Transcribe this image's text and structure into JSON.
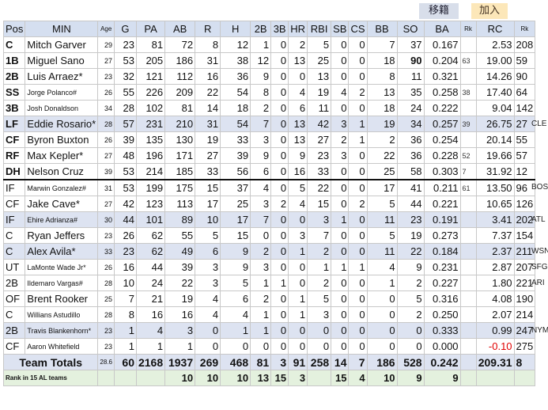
{
  "buttons": {
    "move": "移籍",
    "add": "加入"
  },
  "headers": [
    "Pos",
    "MIN",
    "Age",
    "G",
    "PA",
    "AB",
    "R",
    "H",
    "2B",
    "3B",
    "HR",
    "RBI",
    "SB",
    "CS",
    "BB",
    "SO",
    "BA",
    "Rk",
    "RC",
    "Rk"
  ],
  "players": [
    {
      "pos": "C",
      "name": "Mitch Garver",
      "age": "29",
      "g": "23",
      "pa": "81",
      "ab": "72",
      "r": "8",
      "h": "12",
      "d": "1",
      "t": "0",
      "hr": "2",
      "rbi": "5",
      "sb": "0",
      "cs": "0",
      "bb": "7",
      "so": "37",
      "ba": "0.167",
      "bark": "",
      "rc": "2.53",
      "rcrk": "208",
      "team": "",
      "hl": false
    },
    {
      "pos": "1B",
      "name": "Miguel Sano",
      "age": "27",
      "g": "53",
      "pa": "205",
      "ab": "186",
      "r": "31",
      "h": "38",
      "d": "12",
      "t": "0",
      "hr": "13",
      "rbi": "25",
      "sb": "0",
      "cs": "0",
      "bb": "18",
      "so": "90",
      "ba": "0.204",
      "bark": "63",
      "rc": "19.00",
      "rcrk": "59",
      "team": "",
      "hl": false,
      "so_bold": true
    },
    {
      "pos": "2B",
      "name": "Luis Arraez*",
      "age": "23",
      "g": "32",
      "pa": "121",
      "ab": "112",
      "r": "16",
      "h": "36",
      "d": "9",
      "t": "0",
      "hr": "0",
      "rbi": "13",
      "sb": "0",
      "cs": "0",
      "bb": "8",
      "so": "11",
      "ba": "0.321",
      "bark": "",
      "rc": "14.26",
      "rcrk": "90",
      "team": "",
      "hl": false
    },
    {
      "pos": "SS",
      "name": "Jorge Polanco#",
      "age": "26",
      "g": "55",
      "pa": "226",
      "ab": "209",
      "r": "22",
      "h": "54",
      "d": "8",
      "t": "0",
      "hr": "4",
      "rbi": "19",
      "sb": "4",
      "cs": "2",
      "bb": "13",
      "so": "35",
      "ba": "0.258",
      "bark": "38",
      "rc": "17.40",
      "rcrk": "64",
      "team": "",
      "hl": false,
      "name_small": true
    },
    {
      "pos": "3B",
      "name": "Josh Donaldson",
      "age": "34",
      "g": "28",
      "pa": "102",
      "ab": "81",
      "r": "14",
      "h": "18",
      "d": "2",
      "t": "0",
      "hr": "6",
      "rbi": "11",
      "sb": "0",
      "cs": "0",
      "bb": "18",
      "so": "24",
      "ba": "0.222",
      "bark": "",
      "rc": "9.04",
      "rcrk": "142",
      "team": "",
      "hl": false,
      "name_small": true
    },
    {
      "pos": "LF",
      "name": "Eddie Rosario*",
      "age": "28",
      "g": "57",
      "pa": "231",
      "ab": "210",
      "r": "31",
      "h": "54",
      "d": "7",
      "t": "0",
      "hr": "13",
      "rbi": "42",
      "sb": "3",
      "cs": "1",
      "bb": "19",
      "so": "34",
      "ba": "0.257",
      "bark": "39",
      "rc": "26.75",
      "rcrk": "27",
      "team": "CLE",
      "hl": true
    },
    {
      "pos": "CF",
      "name": "Byron Buxton",
      "age": "26",
      "g": "39",
      "pa": "135",
      "ab": "130",
      "r": "19",
      "h": "33",
      "d": "3",
      "t": "0",
      "hr": "13",
      "rbi": "27",
      "sb": "2",
      "cs": "1",
      "bb": "2",
      "so": "36",
      "ba": "0.254",
      "bark": "",
      "rc": "20.14",
      "rcrk": "55",
      "team": "",
      "hl": false
    },
    {
      "pos": "RF",
      "name": "Max Kepler*",
      "age": "27",
      "g": "48",
      "pa": "196",
      "ab": "171",
      "r": "27",
      "h": "39",
      "d": "9",
      "t": "0",
      "hr": "9",
      "rbi": "23",
      "sb": "3",
      "cs": "0",
      "bb": "22",
      "so": "36",
      "ba": "0.228",
      "bark": "52",
      "rc": "19.66",
      "rcrk": "57",
      "team": "",
      "hl": false
    },
    {
      "pos": "DH",
      "name": "Nelson Cruz",
      "age": "39",
      "g": "53",
      "pa": "214",
      "ab": "185",
      "r": "33",
      "h": "56",
      "d": "6",
      "t": "0",
      "hr": "16",
      "rbi": "33",
      "sb": "0",
      "cs": "0",
      "bb": "25",
      "so": "58",
      "ba": "0.303",
      "bark": "7",
      "rc": "31.92",
      "rcrk": "12",
      "team": "",
      "hl": false
    },
    {
      "pos": "IF",
      "name": "Marwin Gonzalez#",
      "age": "31",
      "g": "53",
      "pa": "199",
      "ab": "175",
      "r": "15",
      "h": "37",
      "d": "4",
      "t": "0",
      "hr": "5",
      "rbi": "22",
      "sb": "0",
      "cs": "0",
      "bb": "17",
      "so": "41",
      "ba": "0.211",
      "bark": "61",
      "rc": "13.50",
      "rcrk": "96",
      "team": "BOS",
      "hl": false,
      "name_small": true,
      "start": true,
      "plainpos": true
    },
    {
      "pos": "CF",
      "name": "Jake Cave*",
      "age": "27",
      "g": "42",
      "pa": "123",
      "ab": "113",
      "r": "17",
      "h": "25",
      "d": "3",
      "t": "2",
      "hr": "4",
      "rbi": "15",
      "sb": "0",
      "cs": "2",
      "bb": "5",
      "so": "44",
      "ba": "0.221",
      "bark": "",
      "rc": "10.65",
      "rcrk": "126",
      "team": "",
      "hl": false,
      "plainpos": true
    },
    {
      "pos": "IF",
      "name": "Ehire Adrianza#",
      "age": "30",
      "g": "44",
      "pa": "101",
      "ab": "89",
      "r": "10",
      "h": "17",
      "d": "7",
      "t": "0",
      "hr": "0",
      "rbi": "3",
      "sb": "1",
      "cs": "0",
      "bb": "11",
      "so": "23",
      "ba": "0.191",
      "bark": "",
      "rc": "3.41",
      "rcrk": "202",
      "team": "ATL",
      "hl": true,
      "name_small": true,
      "plainpos": true
    },
    {
      "pos": "C",
      "name": "Ryan Jeffers",
      "age": "23",
      "g": "26",
      "pa": "62",
      "ab": "55",
      "r": "5",
      "h": "15",
      "d": "0",
      "t": "0",
      "hr": "3",
      "rbi": "7",
      "sb": "0",
      "cs": "0",
      "bb": "5",
      "so": "19",
      "ba": "0.273",
      "bark": "",
      "rc": "7.37",
      "rcrk": "154",
      "team": "",
      "hl": false,
      "plainpos": true
    },
    {
      "pos": "C",
      "name": "Alex Avila*",
      "age": "33",
      "g": "23",
      "pa": "62",
      "ab": "49",
      "r": "6",
      "h": "9",
      "d": "2",
      "t": "0",
      "hr": "1",
      "rbi": "2",
      "sb": "0",
      "cs": "0",
      "bb": "11",
      "so": "22",
      "ba": "0.184",
      "bark": "",
      "rc": "2.37",
      "rcrk": "211",
      "team": "WSN",
      "hl": true,
      "plainpos": true
    },
    {
      "pos": "UT",
      "name": "LaMonte Wade Jr*",
      "age": "26",
      "g": "16",
      "pa": "44",
      "ab": "39",
      "r": "3",
      "h": "9",
      "d": "3",
      "t": "0",
      "hr": "0",
      "rbi": "1",
      "sb": "1",
      "cs": "1",
      "bb": "4",
      "so": "9",
      "ba": "0.231",
      "bark": "",
      "rc": "2.87",
      "rcrk": "207",
      "team": "SFG",
      "hl": false,
      "name_small": true,
      "plainpos": true
    },
    {
      "pos": "2B",
      "name": "Ildemaro Vargas#",
      "age": "28",
      "g": "10",
      "pa": "24",
      "ab": "22",
      "r": "3",
      "h": "5",
      "d": "1",
      "t": "1",
      "hr": "0",
      "rbi": "2",
      "sb": "0",
      "cs": "0",
      "bb": "1",
      "so": "2",
      "ba": "0.227",
      "bark": "",
      "rc": "1.80",
      "rcrk": "221",
      "team": "ARI",
      "hl": false,
      "name_small": true,
      "plainpos": true
    },
    {
      "pos": "OF",
      "name": "Brent Rooker",
      "age": "25",
      "g": "7",
      "pa": "21",
      "ab": "19",
      "r": "4",
      "h": "6",
      "d": "2",
      "t": "0",
      "hr": "1",
      "rbi": "5",
      "sb": "0",
      "cs": "0",
      "bb": "0",
      "so": "5",
      "ba": "0.316",
      "bark": "",
      "rc": "4.08",
      "rcrk": "190",
      "team": "",
      "hl": false,
      "plainpos": true
    },
    {
      "pos": "C",
      "name": "Willians Astudillo",
      "age": "28",
      "g": "8",
      "pa": "16",
      "ab": "16",
      "r": "4",
      "h": "4",
      "d": "1",
      "t": "0",
      "hr": "1",
      "rbi": "3",
      "sb": "0",
      "cs": "0",
      "bb": "0",
      "so": "2",
      "ba": "0.250",
      "bark": "",
      "rc": "2.07",
      "rcrk": "214",
      "team": "",
      "hl": false,
      "name_small": true,
      "plainpos": true
    },
    {
      "pos": "2B",
      "name": "Travis Blankenhorn*",
      "age": "23",
      "g": "1",
      "pa": "4",
      "ab": "3",
      "r": "0",
      "h": "1",
      "d": "1",
      "t": "0",
      "hr": "0",
      "rbi": "0",
      "sb": "0",
      "cs": "0",
      "bb": "0",
      "so": "0",
      "ba": "0.333",
      "bark": "",
      "rc": "0.99",
      "rcrk": "247",
      "team": "NYM",
      "hl": true,
      "name_small": true,
      "plainpos": true
    },
    {
      "pos": "CF",
      "name": "Aaron Whitefield",
      "age": "23",
      "g": "1",
      "pa": "1",
      "ab": "1",
      "r": "0",
      "h": "0",
      "d": "0",
      "t": "0",
      "hr": "0",
      "rbi": "0",
      "sb": "0",
      "cs": "0",
      "bb": "0",
      "so": "0",
      "ba": "0.000",
      "bark": "",
      "rc": "-0.10",
      "rcrk": "275",
      "team": "",
      "hl": false,
      "name_small": true,
      "plainpos": true,
      "rc_red": true
    }
  ],
  "totals": {
    "label": "Team Totals",
    "age": "28.6",
    "g": "60",
    "pa": "2168",
    "ab": "1937",
    "r": "269",
    "h": "468",
    "d": "81",
    "t": "3",
    "hr": "91",
    "rbi": "258",
    "sb": "14",
    "cs": "7",
    "bb": "186",
    "so": "528",
    "ba": "0.242",
    "rc": "209.31",
    "rcrk": "8"
  },
  "rank": {
    "label": "Rank in 15 AL teams",
    "ab": "10",
    "r": "10",
    "h": "10",
    "d": "13",
    "t": "15",
    "hr": "3",
    "sb": "15",
    "cs": "4",
    "bb": "10",
    "so": "9",
    "ba": "9"
  }
}
